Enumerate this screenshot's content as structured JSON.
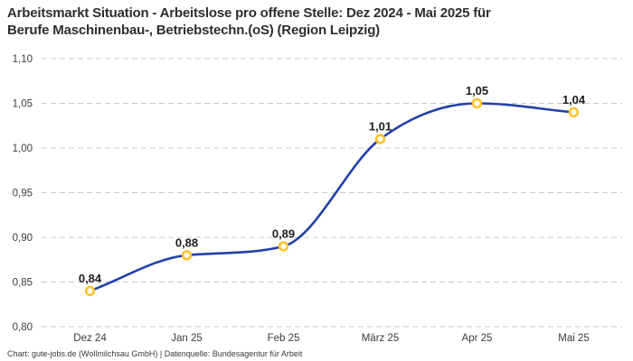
{
  "title": {
    "line1": "Arbeitsmarkt Situation - Arbeitslose pro offene Stelle: Dez 2024 - Mai 2025 für",
    "line2": "Berufe Maschinenbau-, Betriebstechn.(oS) (Region Leipzig)"
  },
  "footer": {
    "text": "Chart: gute-jobs.de (Wollmilchsau GmbH) | Datenquelle: Bundesagentur für Arbeit"
  },
  "colors": {
    "background": "#ffffff",
    "line": "#2140a8",
    "marker_ring": "#ffc22e",
    "marker_fill": "#ffffff",
    "grid": "#c9c9c9",
    "title_text": "#2e2e2e",
    "axis_text": "#3c3c3c",
    "value_label_text": "#1c1c1c",
    "footer_text": "#393939"
  },
  "chart_data": {
    "type": "line",
    "title": "Arbeitsmarkt Situation - Arbeitslose pro offene Stelle: Dez 2024 - Mai 2025 für Berufe Maschinenbau-, Betriebstechn.(oS) (Region Leipzig)",
    "categories": [
      "Dez 24",
      "Jan 25",
      "Feb 25",
      "März 25",
      "Apr 25",
      "Mai 25"
    ],
    "series": [
      {
        "name": "Arbeitslose pro offene Stelle",
        "values": [
          0.84,
          0.88,
          0.89,
          1.01,
          1.05,
          1.04
        ],
        "value_labels": [
          "0,84",
          "0,88",
          "0,89",
          "1,01",
          "1,05",
          "1,04"
        ]
      }
    ],
    "xlabel": "",
    "ylabel": "",
    "ylim": [
      0.8,
      1.1
    ],
    "y_ticks": [
      1.1,
      1.05,
      1.0,
      0.95,
      0.9,
      0.85,
      0.8
    ],
    "y_tick_labels": [
      "1,10",
      "1,05",
      "1,00",
      "0,95",
      "0,90",
      "0,85",
      "0,80"
    ],
    "grid": "horizontal-dashed",
    "legend": "none",
    "interpolation": "monotone-spline",
    "number_format": "de-DE (comma decimal)"
  }
}
